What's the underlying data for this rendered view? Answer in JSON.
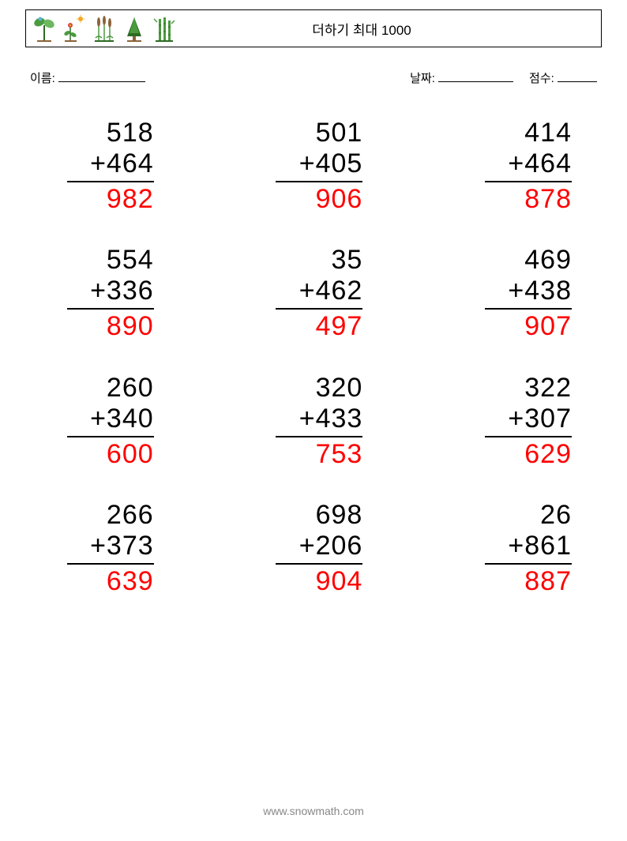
{
  "header": {
    "title": "더하기 최대 1000"
  },
  "meta": {
    "name_label": "이름:",
    "date_label": "날짜:",
    "score_label": "점수:"
  },
  "colors": {
    "answer": "#ff0000",
    "text": "#000000",
    "footer": "#999999",
    "icon_green": "#4a9b3e",
    "icon_green_dark": "#2d6b24",
    "icon_blue": "#5bb5d8",
    "icon_orange": "#f5a623",
    "icon_red": "#d64545",
    "icon_brown": "#8b6239"
  },
  "problems": [
    {
      "a": "518",
      "b": "+464",
      "ans": "982"
    },
    {
      "a": "501",
      "b": "+405",
      "ans": "906"
    },
    {
      "a": "414",
      "b": "+464",
      "ans": "878"
    },
    {
      "a": "554",
      "b": "+336",
      "ans": "890"
    },
    {
      "a": "35",
      "b": "+462",
      "ans": "497"
    },
    {
      "a": "469",
      "b": "+438",
      "ans": "907"
    },
    {
      "a": "260",
      "b": "+340",
      "ans": "600"
    },
    {
      "a": "320",
      "b": "+433",
      "ans": "753"
    },
    {
      "a": "322",
      "b": "+307",
      "ans": "629"
    },
    {
      "a": "266",
      "b": "+373",
      "ans": "639"
    },
    {
      "a": "698",
      "b": "+206",
      "ans": "904"
    },
    {
      "a": "26",
      "b": "+861",
      "ans": "887"
    }
  ],
  "footer": {
    "url": "www.snowmath.com"
  }
}
